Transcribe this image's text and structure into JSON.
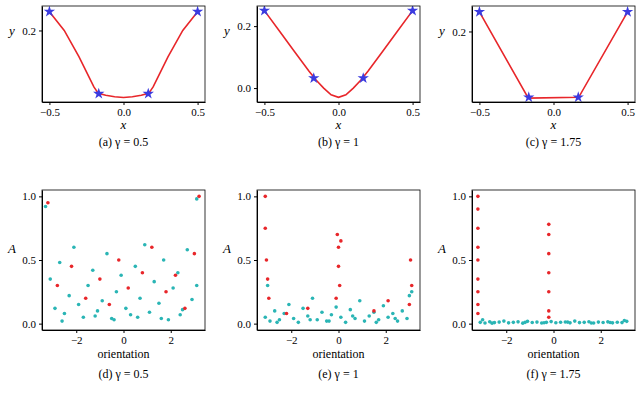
{
  "chart_data": [
    {
      "type": "line",
      "title": "(a) γ = 0.5",
      "x_label": "x",
      "y_label": "y",
      "xlim": [
        -0.55,
        0.55
      ],
      "ylim": [
        0.01,
        0.265
      ],
      "xticks": [
        {
          "value": -0.5,
          "label": "−0.5"
        },
        {
          "value": 0,
          "label": "0.0"
        },
        0.5
      ],
      "yticks": [
        0.2
      ],
      "series": [
        {
          "color": "#e8262a",
          "line_style": "solid",
          "x": [
            -0.5,
            -0.4,
            -0.3,
            -0.25,
            -0.2,
            -0.17,
            -0.12,
            -0.06,
            0,
            0.06,
            0.12,
            0.17,
            0.2,
            0.25,
            0.3,
            0.4,
            0.5
          ],
          "values": [
            0.25,
            0.2,
            0.13,
            0.09,
            0.05,
            0.033,
            0.028,
            0.024,
            0.022,
            0.024,
            0.028,
            0.033,
            0.05,
            0.09,
            0.13,
            0.2,
            0.25
          ]
        },
        {
          "color": "#3b3be0",
          "marker": "star",
          "line_style": "none",
          "x": [
            -0.5,
            -0.167,
            0.167,
            0.5
          ],
          "values": [
            0.25,
            0.032,
            0.032,
            0.25
          ]
        }
      ]
    },
    {
      "type": "line",
      "title": "(b) γ = 1",
      "x_label": "x",
      "y_label": "y",
      "xlim": [
        -0.55,
        0.55
      ],
      "ylim": [
        -0.045,
        0.265
      ],
      "xticks": [
        {
          "value": -0.5,
          "label": "−0.5"
        },
        {
          "value": 0,
          "label": "0.0"
        },
        0.5
      ],
      "yticks": [
        {
          "value": 0,
          "label": "0.0"
        },
        0.2
      ],
      "series": [
        {
          "color": "#e8262a",
          "line_style": "solid",
          "x": [
            -0.5,
            -0.4,
            -0.3,
            -0.2,
            -0.15,
            -0.1,
            -0.05,
            0,
            0.05,
            0.1,
            0.15,
            0.2,
            0.3,
            0.4,
            0.5
          ],
          "values": [
            0.25,
            0.185,
            0.12,
            0.055,
            0.025,
            0.0,
            -0.022,
            -0.03,
            -0.022,
            0.0,
            0.025,
            0.055,
            0.12,
            0.185,
            0.25
          ]
        },
        {
          "color": "#3b3be0",
          "marker": "star",
          "line_style": "none",
          "x": [
            -0.5,
            -0.167,
            0.167,
            0.5
          ],
          "values": [
            0.25,
            0.032,
            0.032,
            0.25
          ]
        }
      ]
    },
    {
      "type": "line",
      "title": "(c) γ = 1.75",
      "x_label": "x",
      "y_label": "y",
      "xlim": [
        -0.55,
        0.55
      ],
      "ylim": [
        0.02,
        0.265
      ],
      "xticks": [
        {
          "value": -0.5,
          "label": "−0.5"
        },
        {
          "value": 0,
          "label": "0.0"
        },
        0.5
      ],
      "yticks": [
        0.2
      ],
      "series": [
        {
          "color": "#e8262a",
          "line_style": "solid",
          "x": [
            -0.5,
            -0.17,
            0.17,
            0.5
          ],
          "values": [
            0.25,
            0.03,
            0.032,
            0.25
          ]
        },
        {
          "color": "#3b3be0",
          "marker": "star",
          "line_style": "none",
          "x": [
            -0.5,
            -0.167,
            0.167,
            0.5
          ],
          "values": [
            0.25,
            0.032,
            0.032,
            0.25
          ]
        }
      ]
    },
    {
      "type": "scatter",
      "title": "(d) γ = 0.5",
      "x_label": "orientation",
      "y_label": "A",
      "xlim": [
        -3.45,
        3.45
      ],
      "ylim": [
        -0.05,
        1.05
      ],
      "xticks": [
        {
          "value": -2,
          "label": "−2"
        },
        0,
        2
      ],
      "yticks": [
        {
          "value": 0,
          "label": "0.0"
        },
        0.5,
        {
          "value": 1,
          "label": "1.0"
        }
      ],
      "series": [
        {
          "color": "#2ab5b5",
          "marker": "circle",
          "x": [
            -3.1,
            -2.9,
            -2.7,
            -2.5,
            -2.3,
            -2.1,
            -1.9,
            -1.7,
            -1.5,
            -1.3,
            -1.1,
            -0.9,
            -0.7,
            -0.5,
            -0.3,
            -0.1,
            0.1,
            0.3,
            0.5,
            0.7,
            0.9,
            1.1,
            1.3,
            1.5,
            1.7,
            1.9,
            2.1,
            2.3,
            2.5,
            2.7,
            2.9,
            3.1,
            -2.6,
            -1.2,
            -0.4,
            0.6,
            1.6,
            2.4,
            -3.3,
            3.1
          ],
          "values": [
            0.35,
            0.12,
            0.48,
            0.08,
            0.22,
            0.6,
            0.15,
            0.05,
            0.3,
            0.42,
            0.1,
            0.18,
            0.55,
            0.04,
            0.25,
            0.38,
            0.12,
            0.07,
            0.45,
            0.2,
            0.62,
            0.09,
            0.33,
            0.16,
            0.5,
            0.03,
            0.28,
            0.4,
            0.11,
            0.58,
            0.19,
            0.3,
            0.02,
            0.06,
            0.03,
            0.05,
            0.04,
            0.07,
            0.92,
            0.98
          ]
        },
        {
          "color": "#e8262a",
          "marker": "circle",
          "x": [
            -3.2,
            -2.8,
            -2.2,
            -1.6,
            -1.0,
            -0.6,
            -0.2,
            0.2,
            0.8,
            1.2,
            1.8,
            2.2,
            2.6,
            3.0,
            3.2
          ],
          "values": [
            0.95,
            0.3,
            0.45,
            0.2,
            0.35,
            0.15,
            0.5,
            0.28,
            0.4,
            0.6,
            0.25,
            0.38,
            0.12,
            0.55,
            1.0
          ]
        }
      ]
    },
    {
      "type": "scatter",
      "title": "(e) γ = 1",
      "x_label": "orientation",
      "y_label": "A",
      "xlim": [
        -3.45,
        3.45
      ],
      "ylim": [
        -0.05,
        1.05
      ],
      "xticks": [
        {
          "value": -2,
          "label": "−2"
        },
        0,
        2
      ],
      "yticks": [
        {
          "value": 0,
          "label": "0.0"
        },
        0.5,
        {
          "value": 1,
          "label": "1.0"
        }
      ],
      "series": [
        {
          "color": "#2ab5b5",
          "marker": "circle",
          "x": [
            -3.1,
            -2.9,
            -2.7,
            -2.5,
            -2.3,
            -2.1,
            -1.9,
            -1.7,
            -1.5,
            -1.3,
            -1.1,
            -0.9,
            -0.7,
            -0.5,
            -0.3,
            -0.1,
            0.1,
            0.3,
            0.5,
            0.7,
            0.9,
            1.1,
            1.3,
            1.5,
            1.7,
            1.9,
            2.1,
            2.3,
            2.5,
            2.7,
            2.9,
            3.1,
            -2.6,
            -1.2,
            -0.4,
            0.6,
            1.6,
            2.4,
            -3.0,
            3.0
          ],
          "values": [
            0.05,
            0.02,
            0.1,
            0.03,
            0.08,
            0.15,
            0.04,
            0.01,
            0.12,
            0.06,
            0.2,
            0.03,
            0.09,
            0.02,
            0.07,
            0.13,
            0.05,
            0.01,
            0.11,
            0.04,
            0.18,
            0.02,
            0.06,
            0.09,
            0.03,
            0.14,
            0.05,
            0.08,
            0.02,
            0.1,
            0.04,
            0.25,
            0.01,
            0.03,
            0.02,
            0.06,
            0.01,
            0.04,
            0.3,
            0.22
          ]
        },
        {
          "color": "#e8262a",
          "marker": "circle",
          "x": [
            -3.1,
            -3.1,
            -3.05,
            -3.0,
            -2.95,
            -0.05,
            0.0,
            0.0,
            0.05,
            0.1,
            -0.1,
            3.05,
            3.1,
            3.0,
            -1.3,
            2.1,
            1.5,
            -2.2
          ],
          "values": [
            1.0,
            0.75,
            0.5,
            0.35,
            0.2,
            0.7,
            0.6,
            0.45,
            0.3,
            0.65,
            0.2,
            0.5,
            0.3,
            0.15,
            0.12,
            0.18,
            0.1,
            0.08
          ]
        }
      ]
    },
    {
      "type": "scatter",
      "title": "(f) γ = 1.75",
      "x_label": "orientation",
      "y_label": "A",
      "xlim": [
        -3.45,
        3.45
      ],
      "ylim": [
        -0.05,
        1.05
      ],
      "xticks": [
        {
          "value": -2,
          "label": "−2"
        },
        0,
        2
      ],
      "yticks": [
        {
          "value": 0,
          "label": "0.0"
        },
        0.5,
        {
          "value": 1,
          "label": "1.0"
        }
      ],
      "series": [
        {
          "color": "#2ab5b5",
          "marker": "circle",
          "x": [
            -3.1,
            -2.9,
            -2.7,
            -2.5,
            -2.3,
            -2.1,
            -1.9,
            -1.7,
            -1.5,
            -1.3,
            -1.1,
            -0.9,
            -0.7,
            -0.5,
            -0.3,
            -0.1,
            0.1,
            0.3,
            0.5,
            0.7,
            0.9,
            1.1,
            1.3,
            1.5,
            1.7,
            1.9,
            2.1,
            2.3,
            2.5,
            2.7,
            2.9,
            3.1,
            -2.6,
            -1.2,
            -0.4,
            0.6,
            1.6,
            2.4,
            -3.0,
            3.0
          ],
          "values": [
            0.01,
            0.005,
            0.015,
            0.008,
            0.012,
            0.02,
            0.006,
            0.01,
            0.014,
            0.004,
            0.018,
            0.009,
            0.012,
            0.005,
            0.01,
            0.016,
            0.007,
            0.011,
            0.013,
            0.006,
            0.02,
            0.008,
            0.01,
            0.015,
            0.005,
            0.012,
            0.009,
            0.014,
            0.006,
            0.011,
            0.008,
            0.018,
            0.004,
            0.01,
            0.007,
            0.012,
            0.005,
            0.009,
            0.03,
            0.025
          ]
        },
        {
          "color": "#e8262a",
          "marker": "circle",
          "x": [
            -3.2,
            -3.2,
            -3.2,
            -3.2,
            -3.2,
            -3.2,
            -3.2,
            -3.2,
            -3.2,
            -0.2,
            -0.2,
            -0.2,
            -0.2,
            -0.2,
            -0.2,
            -0.2
          ],
          "values": [
            1.0,
            0.9,
            0.75,
            0.6,
            0.5,
            0.35,
            0.25,
            0.15,
            0.08,
            0.78,
            0.7,
            0.55,
            0.4,
            0.25,
            0.1,
            0.05
          ]
        }
      ]
    }
  ]
}
